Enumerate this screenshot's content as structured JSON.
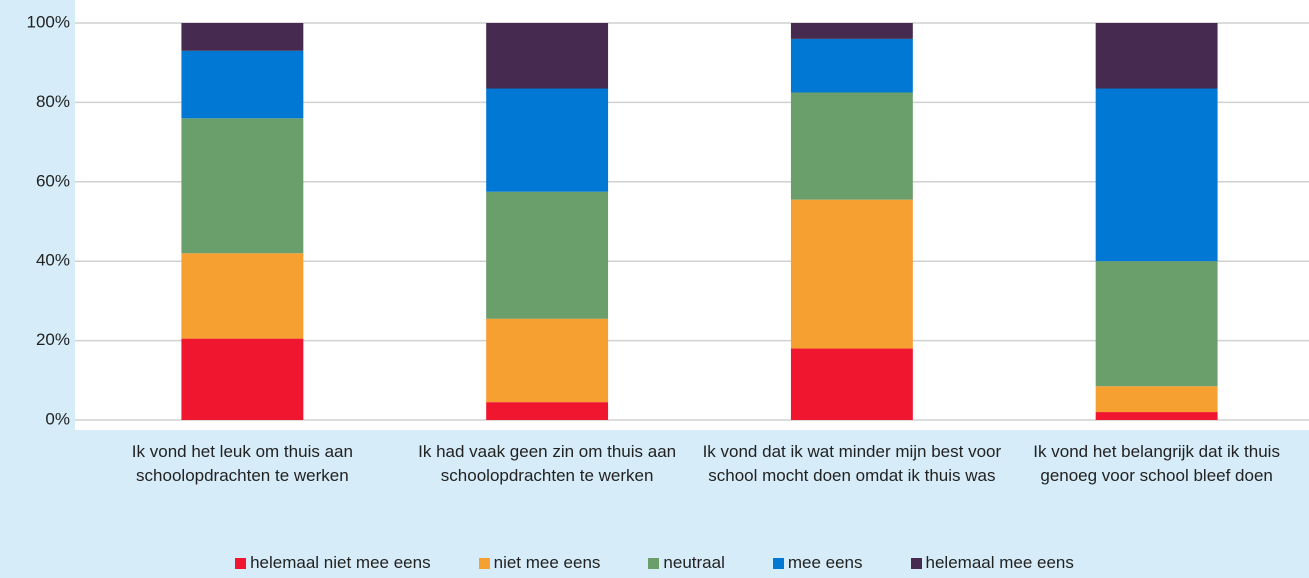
{
  "chart_data": {
    "type": "stacked_bar",
    "categories": [
      "Ik vond het leuk om thuis aan schoolopdrachten te werken",
      "Ik had vaak geen zin om thuis aan schoolopdrachten te werken",
      "Ik vond dat ik wat minder mijn best voor school mocht doen omdat ik thuis was",
      "Ik vond het belangrijk dat ik thuis genoeg voor school bleef doen"
    ],
    "series": [
      {
        "name": "helemaal niet mee eens",
        "color": "#f0162f",
        "values": [
          20.5,
          4.5,
          18,
          2
        ]
      },
      {
        "name": "niet mee eens",
        "color": "#f7a032",
        "values": [
          21.5,
          21,
          37.5,
          6.5
        ]
      },
      {
        "name": "neutraal",
        "color": "#6a9e6a",
        "values": [
          34,
          32,
          27,
          31.5
        ]
      },
      {
        "name": "mee eens",
        "color": "#0078d4",
        "values": [
          17,
          26,
          13.5,
          43.5
        ]
      },
      {
        "name": "helemaal mee eens",
        "color": "#472a4f",
        "values": [
          7,
          16.5,
          4,
          16.5
        ]
      }
    ],
    "ylim": [
      0,
      100
    ],
    "yticks": [
      {
        "value": 0,
        "label": "0%"
      },
      {
        "value": 20,
        "label": "20%"
      },
      {
        "value": 40,
        "label": "40%"
      },
      {
        "value": 60,
        "label": "60%"
      },
      {
        "value": 80,
        "label": "80%"
      },
      {
        "value": 100,
        "label": "100%"
      }
    ],
    "grid": true,
    "legend": "bottom"
  }
}
